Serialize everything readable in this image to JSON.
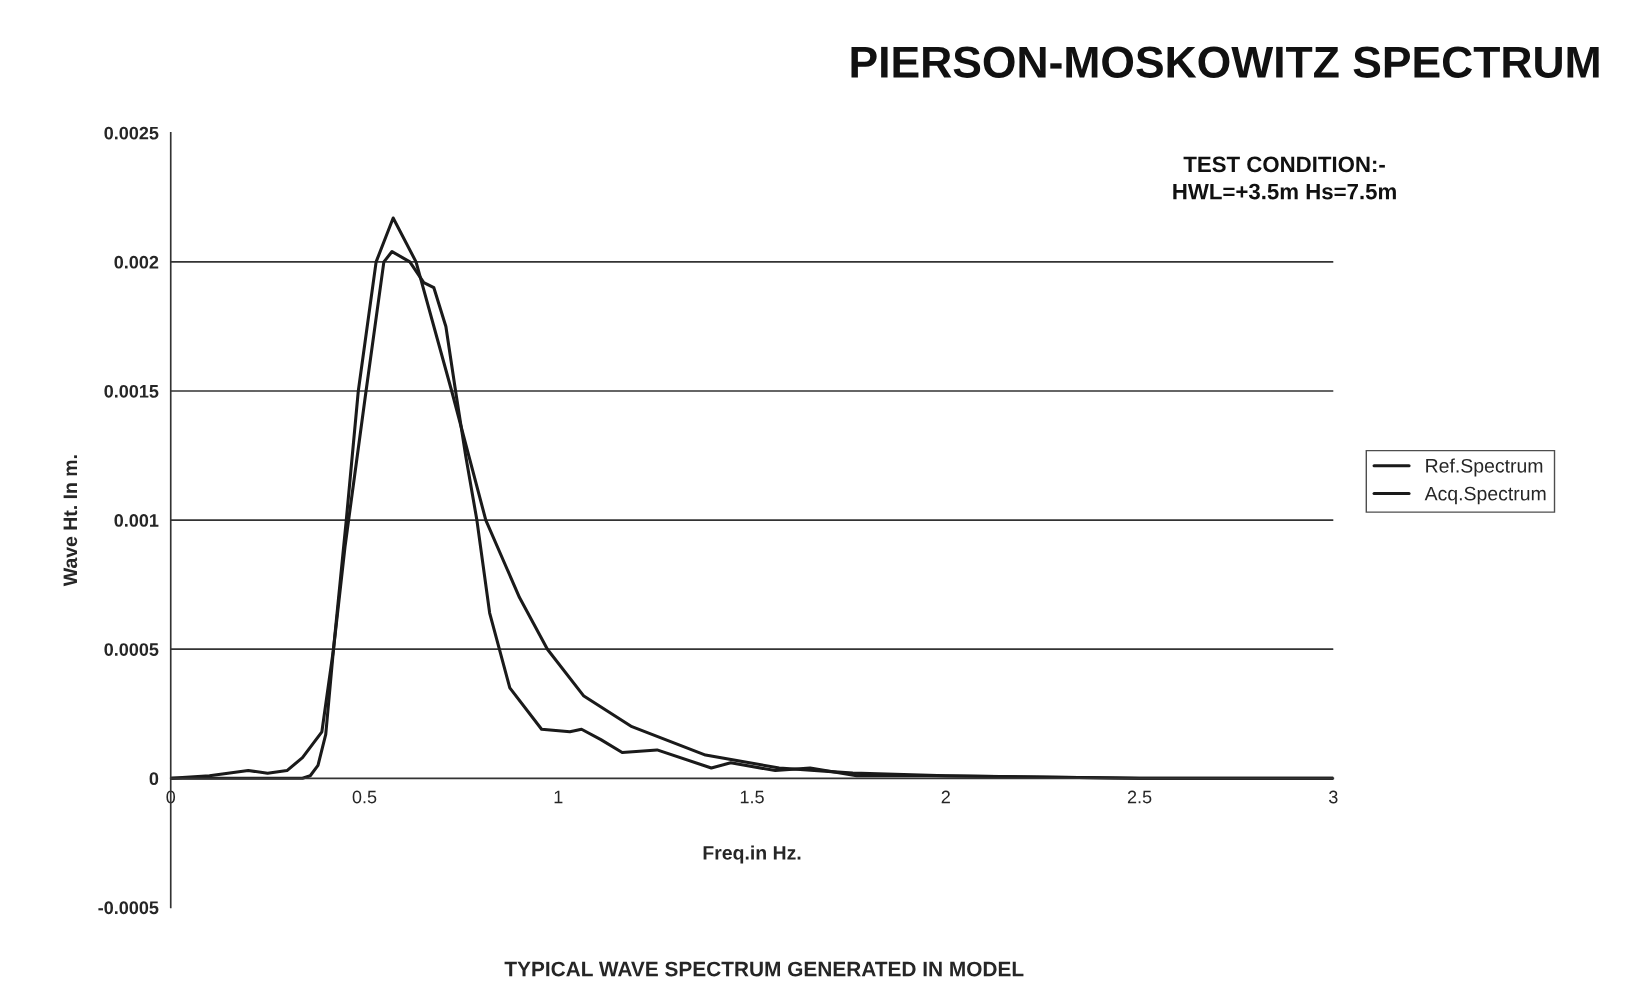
{
  "chart_data": {
    "type": "line",
    "title": "PIERSON-MOSKOWITZ SPECTRUM",
    "subtitle": "TEST CONDITION:-\nHWL=+3.5m Hs=7.5m",
    "xlabel": "Freq.in Hz.",
    "ylabel": "Wave Ht. In m.",
    "annotations": [
      "TYPICAL WAVE SPECTRUM GENERATED IN MODEL"
    ],
    "xlim": [
      0,
      3
    ],
    "ylim": [
      -0.0005,
      0.0025
    ],
    "xticks": [
      0,
      0.5,
      1,
      1.5,
      2,
      2.5,
      3
    ],
    "yticks": [
      -0.0005,
      0,
      0.0005,
      0.001,
      0.0015,
      0.002,
      0.0025
    ],
    "grid": "y",
    "legend": "right",
    "marker": "none",
    "line_style": "solid",
    "series": [
      {
        "name": "Ref.Spectrum",
        "color": "#1a1a1a",
        "x": [
          0,
          0.2,
          0.34,
          0.36,
          0.38,
          0.4,
          0.42,
          0.453,
          0.484,
          0.53,
          0.574,
          0.633,
          0.725,
          0.813,
          0.9,
          0.972,
          1.065,
          1.19,
          1.38,
          1.57,
          1.76,
          2.0,
          2.5,
          3.0
        ],
        "values": [
          0,
          0,
          0,
          1e-05,
          5e-05,
          0.00017,
          0.0005,
          0.001,
          0.0015,
          0.002,
          0.00217,
          0.002,
          0.0015,
          0.001,
          0.0007,
          0.0005,
          0.00032,
          0.0002,
          9e-05,
          4e-05,
          2e-05,
          1e-05,
          0,
          0
        ]
      },
      {
        "name": "Acq.Spectrum",
        "color": "#1a1a1a",
        "x": [
          0,
          0.1,
          0.2,
          0.25,
          0.3,
          0.34,
          0.39,
          0.42,
          0.45,
          0.504,
          0.55,
          0.571,
          0.617,
          0.653,
          0.679,
          0.71,
          0.735,
          0.761,
          0.79,
          0.823,
          0.875,
          0.957,
          1.03,
          1.06,
          1.11,
          1.165,
          1.255,
          1.395,
          1.445,
          1.56,
          1.65,
          1.77,
          1.95,
          2.5,
          3.0
        ],
        "values": [
          0,
          1e-05,
          3e-05,
          2e-05,
          3e-05,
          8e-05,
          0.00018,
          0.0005,
          0.0009,
          0.0015,
          0.002,
          0.00204,
          0.002,
          0.00192,
          0.0019,
          0.00175,
          0.0015,
          0.00125,
          0.001,
          0.00064,
          0.00035,
          0.00019,
          0.00018,
          0.00019,
          0.00015,
          0.0001,
          0.00011,
          4e-05,
          6e-05,
          3e-05,
          4e-05,
          1e-05,
          1e-05,
          0,
          0
        ]
      }
    ]
  }
}
